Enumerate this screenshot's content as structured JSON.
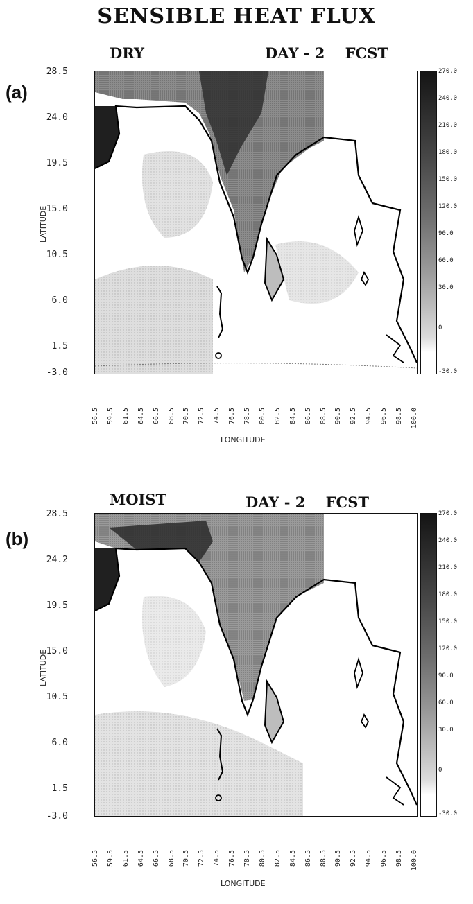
{
  "title": "SENSIBLE HEAT FLUX",
  "colorbar": {
    "ticks": [
      "270.0",
      "240.0",
      "210.0",
      "180.0",
      "150.0",
      "120.0",
      "90.0",
      "60.0",
      "30.0",
      "0",
      "-30.0"
    ],
    "min": -30,
    "max": 270,
    "colors": {
      "high": "#1a1a1a",
      "low": "#ffffff"
    }
  },
  "panels": [
    {
      "label": "(a)",
      "left_header": "DRY",
      "right_header": "DAY - 2    FCST",
      "y_axis_title": "LATITUDE",
      "x_axis_title": "LONGITUDE",
      "y_ticks": [
        "28.5",
        "24.0",
        "19.5",
        "15.0",
        "10.5",
        "6.0",
        "1.5",
        "-3.0"
      ],
      "x_ticks": [
        "56.5",
        "59.5",
        "61.5",
        "64.5",
        "66.5",
        "68.5",
        "70.5",
        "72.5",
        "74.5",
        "76.5",
        "78.5",
        "80.5",
        "82.5",
        "84.5",
        "86.5",
        "88.5",
        "90.5",
        "92.5",
        "94.5",
        "96.5",
        "98.5",
        "100.0"
      ]
    },
    {
      "label": "(b)",
      "left_header": "MOIST",
      "right_header": "DAY - 2    FCST",
      "y_axis_title": "LATITUDE",
      "x_axis_title": "LONGITUDE",
      "y_ticks": [
        "28.5",
        "24.2",
        "19.5",
        "15.0",
        "10.5",
        "6.0",
        "1.5",
        "-3.0"
      ],
      "x_ticks": [
        "56.5",
        "59.5",
        "61.5",
        "64.5",
        "66.5",
        "68.5",
        "70.5",
        "72.5",
        "74.5",
        "76.5",
        "78.5",
        "80.5",
        "82.5",
        "84.5",
        "86.5",
        "88.5",
        "90.5",
        "92.5",
        "94.5",
        "96.5",
        "98.5",
        "100.0"
      ]
    }
  ]
}
